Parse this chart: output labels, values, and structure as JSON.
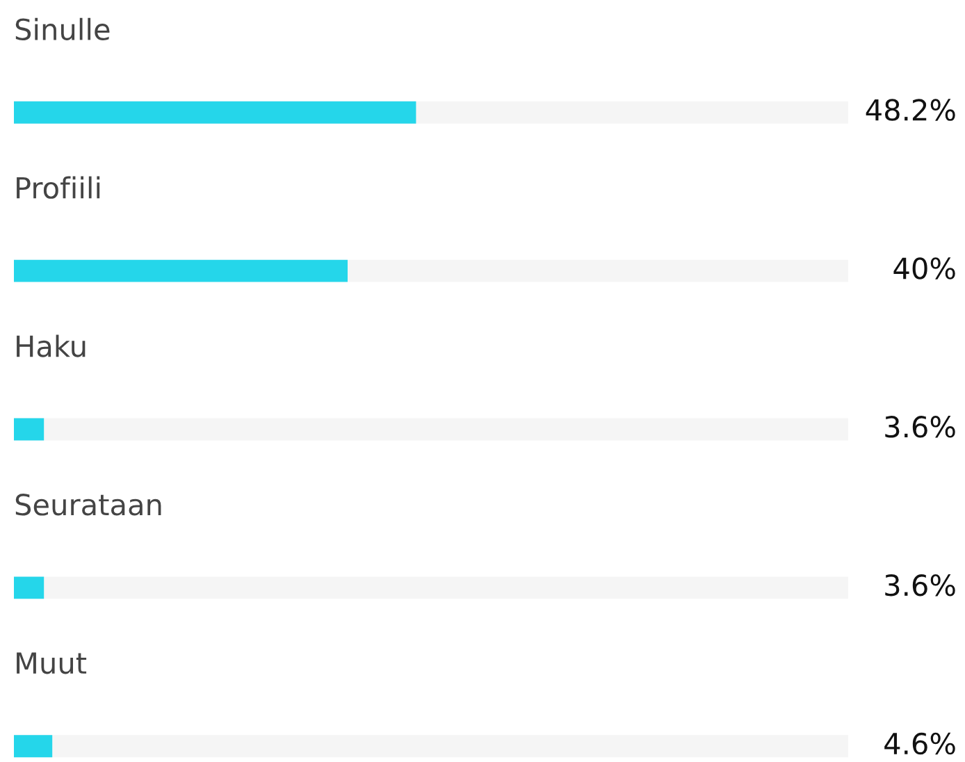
{
  "chart_data": {
    "type": "bar",
    "orientation": "horizontal",
    "categories": [
      "Sinulle",
      "Profiili",
      "Haku",
      "Seurataan",
      "Muut"
    ],
    "values": [
      48.2,
      40,
      3.6,
      3.6,
      4.6
    ],
    "value_labels": [
      "48.2%",
      "40%",
      "3.6%",
      "3.6%",
      "4.6%"
    ],
    "color": "#25d6ea",
    "xlim": [
      0,
      100
    ]
  }
}
